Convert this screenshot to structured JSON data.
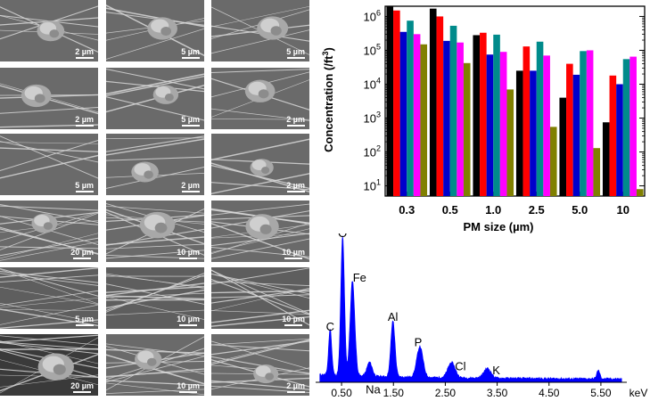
{
  "sem_panels": [
    {
      "id": "a1",
      "scale": "2 µm"
    },
    {
      "id": "a2",
      "scale": "5 µm"
    },
    {
      "id": "a3",
      "scale": "5 µm"
    },
    {
      "id": "b1",
      "scale": "2 µm"
    },
    {
      "id": "b2",
      "scale": "5 µm"
    },
    {
      "id": "b3",
      "scale": "2 µm"
    },
    {
      "id": "c1",
      "scale": "5 µm"
    },
    {
      "id": "c2",
      "scale": "2 µm"
    },
    {
      "id": "c3",
      "scale": "2 µm"
    },
    {
      "id": "d1",
      "scale": "20 µm"
    },
    {
      "id": "d2",
      "scale": "10 µm"
    },
    {
      "id": "d3",
      "scale": "10 µm"
    },
    {
      "id": "e1",
      "scale": "5 µm"
    },
    {
      "id": "e2",
      "scale": "10 µm"
    },
    {
      "id": "e3",
      "scale": "10 µm"
    },
    {
      "id": "f1",
      "scale": "20 µm"
    },
    {
      "id": "f2",
      "scale": "10 µm"
    },
    {
      "id": "f3",
      "scale": "2 µm"
    }
  ],
  "chart_data": [
    {
      "type": "bar",
      "title": "",
      "xlabel": "PM size (µm)",
      "ylabel": "Concentration (/ft³)",
      "ylabel_main": "Concentration (/ft",
      "ylabel_sup": "3",
      "ylabel_close": ")",
      "yscale": "log",
      "ylim": [
        5,
        2000000
      ],
      "yticks": [
        {
          "value": 10,
          "base": "10",
          "exp": "1"
        },
        {
          "value": 100,
          "base": "10",
          "exp": "2"
        },
        {
          "value": 1000,
          "base": "10",
          "exp": "3"
        },
        {
          "value": 10000,
          "base": "10",
          "exp": "4"
        },
        {
          "value": 100000,
          "base": "10",
          "exp": "5"
        },
        {
          "value": 1000000,
          "base": "10",
          "exp": "6"
        }
      ],
      "categories": [
        "0.3",
        "0.5",
        "1.0",
        "2.5",
        "5.0",
        "10"
      ],
      "series": [
        {
          "color": "#000000",
          "values": [
            2000000,
            1700000,
            280000,
            25000,
            4000,
            750
          ]
        },
        {
          "color": "#ff0000",
          "values": [
            1500000,
            1000000,
            330000,
            130000,
            40000,
            18000
          ]
        },
        {
          "color": "#0000cc",
          "values": [
            350000,
            190000,
            75000,
            25000,
            19000,
            10000
          ]
        },
        {
          "color": "#008b8b",
          "values": [
            750000,
            530000,
            290000,
            180000,
            95000,
            55000
          ]
        },
        {
          "color": "#ff00ff",
          "values": [
            300000,
            170000,
            90000,
            70000,
            100000,
            65000
          ]
        },
        {
          "color": "#808000",
          "values": [
            150000,
            42000,
            7000,
            550,
            130,
            8
          ]
        }
      ],
      "grid": false,
      "legend": "none"
    },
    {
      "type": "area",
      "title": "",
      "xlabel": "",
      "x_unit": "keV",
      "xlim": [
        0,
        6.0
      ],
      "xticks": [
        "0.50",
        "1.50",
        "2.50",
        "3.50",
        "4.50",
        "5.50"
      ],
      "xtick_values": [
        0.5,
        1.5,
        2.5,
        3.5,
        4.5,
        5.5
      ],
      "color": "#0000ff",
      "peaks": [
        {
          "label": "C",
          "energy": 0.28,
          "intensity": 0.33
        },
        {
          "label": "O",
          "energy": 0.52,
          "intensity": 1.0
        },
        {
          "label": "Fe",
          "energy": 0.71,
          "intensity": 0.68
        },
        {
          "label": "Na",
          "energy": 1.04,
          "intensity": 0.1
        },
        {
          "label": "Al",
          "energy": 1.49,
          "intensity": 0.4
        },
        {
          "label": "P",
          "energy": 2.01,
          "intensity": 0.22
        },
        {
          "label": "Cl",
          "energy": 2.62,
          "intensity": 0.11
        },
        {
          "label": "K",
          "energy": 3.31,
          "intensity": 0.07
        }
      ]
    }
  ]
}
